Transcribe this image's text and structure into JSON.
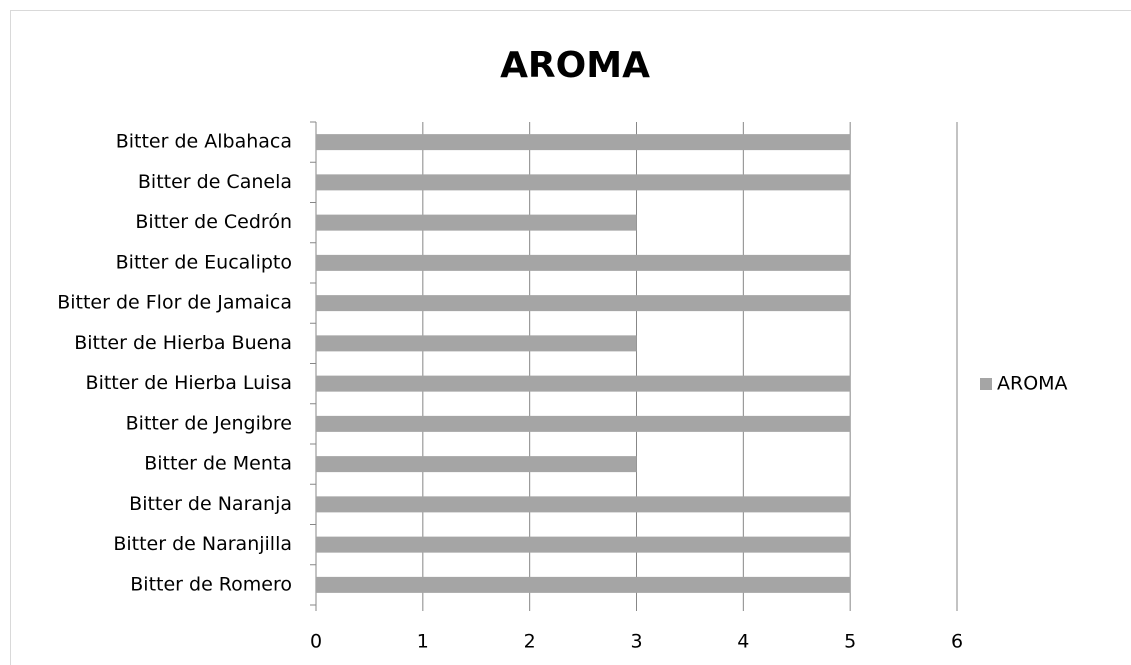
{
  "chart_data": {
    "type": "bar",
    "orientation": "horizontal",
    "title": "AROMA",
    "categories": [
      "Bitter de Albahaca",
      "Bitter de Canela",
      "Bitter de Cedrón",
      "Bitter de Eucalipto",
      "Bitter de Flor de Jamaica",
      "Bitter de Hierba Buena",
      "Bitter de Hierba Luisa",
      "Bitter de Jengibre",
      "Bitter de Menta",
      "Bitter de Naranja",
      "Bitter de Naranjilla",
      "Bitter de Romero"
    ],
    "series": [
      {
        "name": "AROMA",
        "color": "#a5a5a5",
        "values": [
          5,
          5,
          3,
          5,
          5,
          3,
          5,
          5,
          3,
          5,
          5,
          5
        ]
      }
    ],
    "xlim": [
      0,
      6
    ],
    "xticks": [
      0,
      1,
      2,
      3,
      4,
      5,
      6
    ],
    "grid": true,
    "legend": "right"
  }
}
